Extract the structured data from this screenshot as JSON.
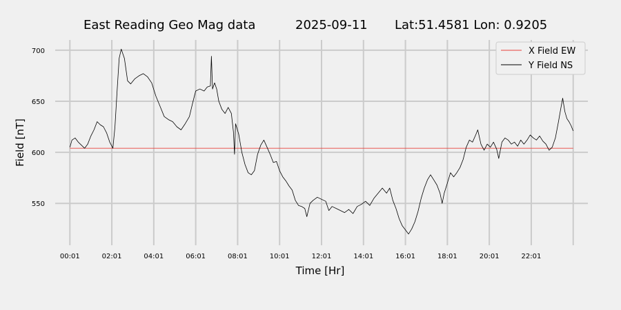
{
  "chart_data": {
    "type": "line",
    "title_parts": [
      "East Reading Geo Mag data",
      "2025-09-11",
      "Lat:51.4581  Lon: 0.9205"
    ],
    "xlabel": "Time  [Hr]",
    "ylabel": "Field  [nT]",
    "x_unit": "hours",
    "xlim": [
      -0.7,
      24.7
    ],
    "ylim": [
      509,
      710
    ],
    "x_ticks": [
      {
        "value": 0,
        "label": "00:01"
      },
      {
        "value": 2,
        "label": "02:01"
      },
      {
        "value": 4,
        "label": "04:01"
      },
      {
        "value": 6,
        "label": "06:01"
      },
      {
        "value": 8,
        "label": "08:01"
      },
      {
        "value": 10,
        "label": "10:01"
      },
      {
        "value": 12,
        "label": "12:01"
      },
      {
        "value": 14,
        "label": "14:01"
      },
      {
        "value": 16,
        "label": "16:01"
      },
      {
        "value": 18,
        "label": "18:01"
      },
      {
        "value": 20,
        "label": "20:01"
      },
      {
        "value": 22,
        "label": "22:01"
      }
    ],
    "x_grid": [
      0,
      2,
      4,
      6,
      8,
      10,
      12,
      14,
      16,
      18,
      20,
      22,
      24
    ],
    "y_ticks": [
      {
        "value": 550,
        "label": "550"
      },
      {
        "value": 600,
        "label": "600"
      },
      {
        "value": 650,
        "label": "650"
      },
      {
        "value": 700,
        "label": "700"
      }
    ],
    "grid": true,
    "legend_position": "top-right",
    "series": [
      {
        "name": "X Field EW",
        "color": "#e8413a",
        "points": [
          [
            0,
            604
          ],
          [
            24,
            604
          ]
        ]
      },
      {
        "name": "Y Field NS",
        "color": "#000000",
        "points": [
          [
            0.0,
            605
          ],
          [
            0.1,
            612
          ],
          [
            0.25,
            614
          ],
          [
            0.4,
            610
          ],
          [
            0.55,
            607
          ],
          [
            0.7,
            604
          ],
          [
            0.85,
            608
          ],
          [
            1.0,
            616
          ],
          [
            1.15,
            622
          ],
          [
            1.3,
            630
          ],
          [
            1.45,
            627
          ],
          [
            1.6,
            625
          ],
          [
            1.75,
            619
          ],
          [
            1.9,
            610
          ],
          [
            2.0,
            606
          ],
          [
            2.05,
            604
          ],
          [
            2.15,
            625
          ],
          [
            2.25,
            660
          ],
          [
            2.35,
            692
          ],
          [
            2.45,
            701
          ],
          [
            2.6,
            692
          ],
          [
            2.75,
            670
          ],
          [
            2.9,
            667
          ],
          [
            3.1,
            672
          ],
          [
            3.3,
            675
          ],
          [
            3.5,
            677
          ],
          [
            3.7,
            674
          ],
          [
            3.9,
            668
          ],
          [
            4.1,
            655
          ],
          [
            4.3,
            645
          ],
          [
            4.5,
            635
          ],
          [
            4.7,
            632
          ],
          [
            4.9,
            630
          ],
          [
            5.1,
            625
          ],
          [
            5.3,
            622
          ],
          [
            5.5,
            628
          ],
          [
            5.7,
            635
          ],
          [
            5.85,
            648
          ],
          [
            6.0,
            660
          ],
          [
            6.2,
            662
          ],
          [
            6.4,
            660
          ],
          [
            6.55,
            664
          ],
          [
            6.7,
            665
          ],
          [
            6.75,
            694
          ],
          [
            6.8,
            662
          ],
          [
            6.9,
            668
          ],
          [
            7.0,
            662
          ],
          [
            7.1,
            650
          ],
          [
            7.25,
            642
          ],
          [
            7.4,
            638
          ],
          [
            7.55,
            644
          ],
          [
            7.7,
            638
          ],
          [
            7.8,
            620
          ],
          [
            7.85,
            598
          ],
          [
            7.9,
            628
          ],
          [
            8.05,
            618
          ],
          [
            8.2,
            600
          ],
          [
            8.35,
            588
          ],
          [
            8.5,
            580
          ],
          [
            8.65,
            578
          ],
          [
            8.8,
            582
          ],
          [
            8.95,
            598
          ],
          [
            9.1,
            607
          ],
          [
            9.25,
            612
          ],
          [
            9.4,
            605
          ],
          [
            9.55,
            598
          ],
          [
            9.7,
            590
          ],
          [
            9.85,
            591
          ],
          [
            10.0,
            582
          ],
          [
            10.15,
            576
          ],
          [
            10.3,
            572
          ],
          [
            10.45,
            567
          ],
          [
            10.6,
            563
          ],
          [
            10.75,
            553
          ],
          [
            10.9,
            548
          ],
          [
            11.05,
            547
          ],
          [
            11.2,
            545
          ],
          [
            11.3,
            537
          ],
          [
            11.45,
            550
          ],
          [
            11.6,
            553
          ],
          [
            11.8,
            556
          ],
          [
            12.0,
            554
          ],
          [
            12.2,
            552
          ],
          [
            12.35,
            543
          ],
          [
            12.5,
            547
          ],
          [
            12.7,
            545
          ],
          [
            12.9,
            543
          ],
          [
            13.1,
            541
          ],
          [
            13.3,
            544
          ],
          [
            13.5,
            540
          ],
          [
            13.7,
            547
          ],
          [
            13.9,
            549
          ],
          [
            14.1,
            552
          ],
          [
            14.3,
            548
          ],
          [
            14.5,
            555
          ],
          [
            14.7,
            560
          ],
          [
            14.9,
            565
          ],
          [
            15.1,
            560
          ],
          [
            15.25,
            565
          ],
          [
            15.4,
            553
          ],
          [
            15.55,
            545
          ],
          [
            15.7,
            535
          ],
          [
            15.85,
            528
          ],
          [
            16.0,
            524
          ],
          [
            16.15,
            520
          ],
          [
            16.3,
            525
          ],
          [
            16.45,
            532
          ],
          [
            16.6,
            542
          ],
          [
            16.75,
            555
          ],
          [
            16.9,
            565
          ],
          [
            17.05,
            573
          ],
          [
            17.2,
            578
          ],
          [
            17.35,
            573
          ],
          [
            17.5,
            568
          ],
          [
            17.65,
            560
          ],
          [
            17.75,
            550
          ],
          [
            17.85,
            560
          ],
          [
            18.0,
            570
          ],
          [
            18.15,
            580
          ],
          [
            18.3,
            576
          ],
          [
            18.45,
            580
          ],
          [
            18.6,
            585
          ],
          [
            18.75,
            593
          ],
          [
            18.9,
            605
          ],
          [
            19.05,
            612
          ],
          [
            19.2,
            610
          ],
          [
            19.35,
            617
          ],
          [
            19.45,
            622
          ],
          [
            19.6,
            608
          ],
          [
            19.75,
            602
          ],
          [
            19.9,
            608
          ],
          [
            20.05,
            605
          ],
          [
            20.2,
            610
          ],
          [
            20.35,
            603
          ],
          [
            20.45,
            594
          ],
          [
            20.6,
            610
          ],
          [
            20.75,
            614
          ],
          [
            20.9,
            612
          ],
          [
            21.05,
            608
          ],
          [
            21.2,
            610
          ],
          [
            21.35,
            606
          ],
          [
            21.5,
            612
          ],
          [
            21.65,
            608
          ],
          [
            21.8,
            612
          ],
          [
            21.95,
            617
          ],
          [
            22.1,
            614
          ],
          [
            22.25,
            612
          ],
          [
            22.4,
            616
          ],
          [
            22.55,
            611
          ],
          [
            22.7,
            608
          ],
          [
            22.85,
            602
          ],
          [
            23.0,
            605
          ],
          [
            23.15,
            614
          ],
          [
            23.3,
            630
          ],
          [
            23.4,
            642
          ],
          [
            23.5,
            653
          ],
          [
            23.6,
            640
          ],
          [
            23.7,
            633
          ],
          [
            23.8,
            630
          ],
          [
            23.9,
            626
          ],
          [
            24.0,
            621
          ]
        ]
      }
    ]
  }
}
